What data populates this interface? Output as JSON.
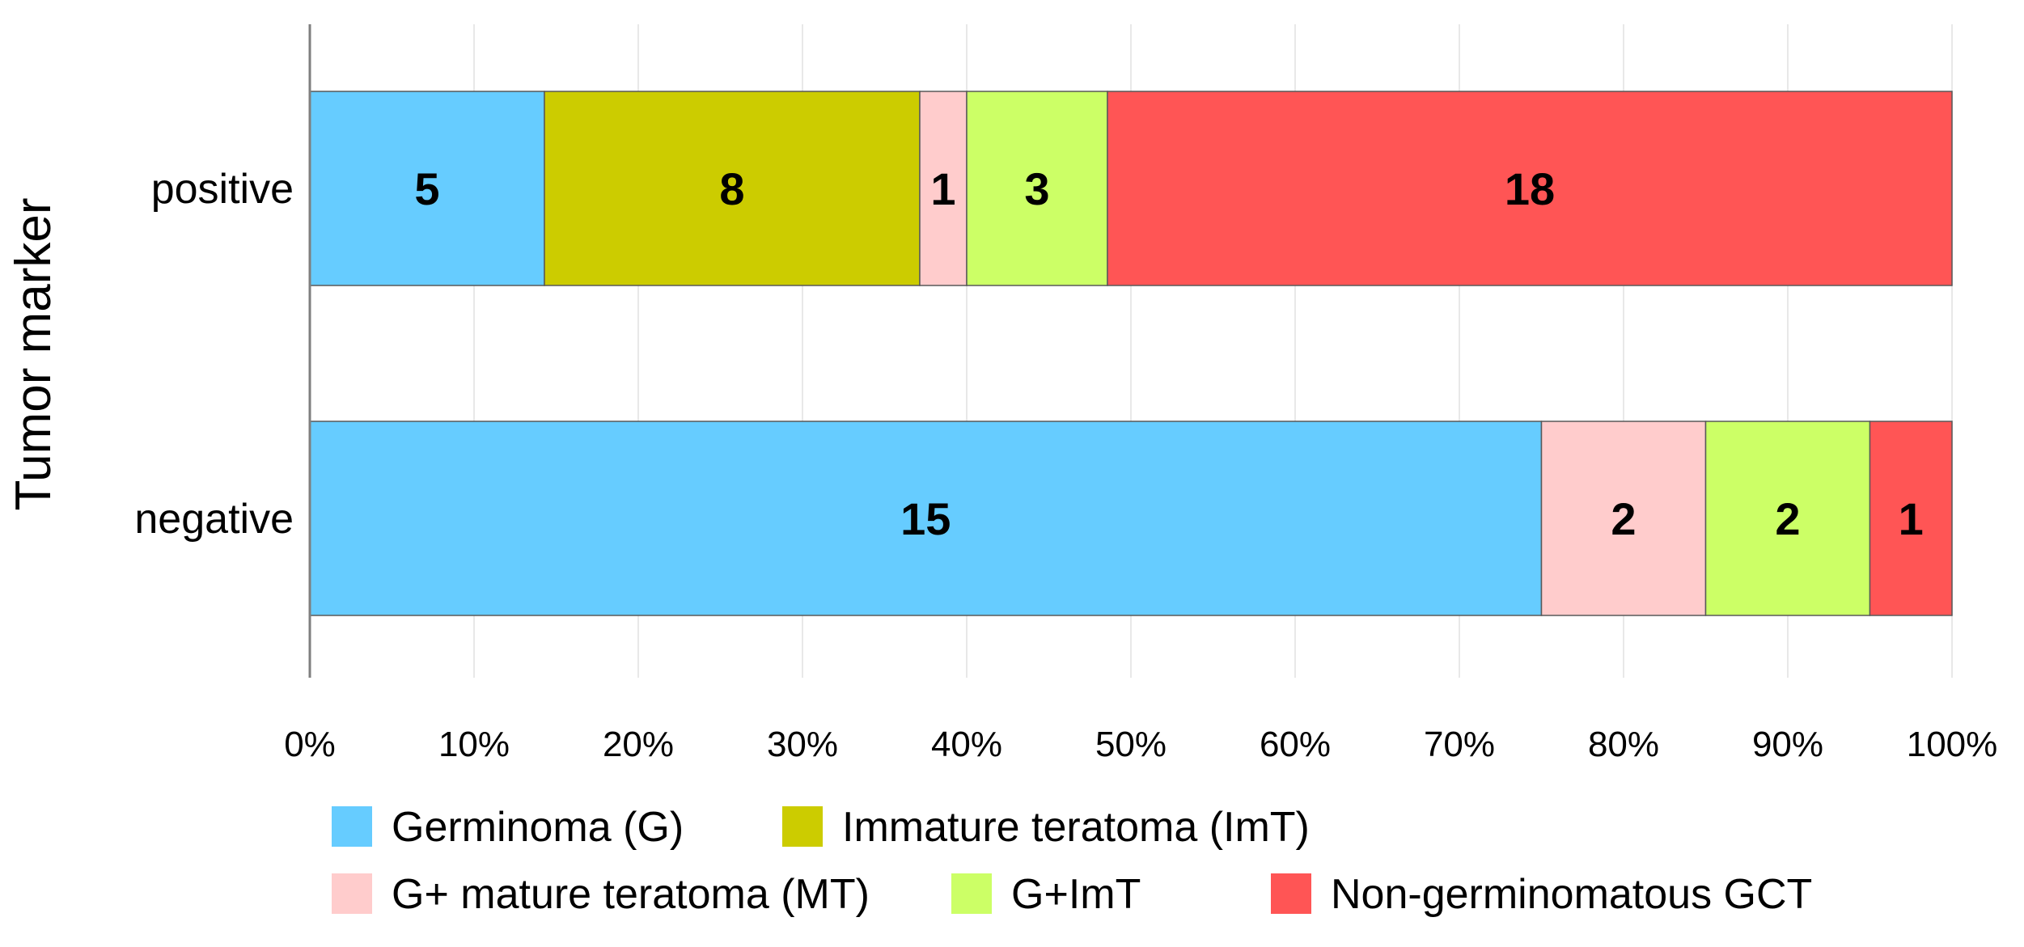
{
  "chart_data": {
    "type": "bar",
    "orientation": "horizontal",
    "stacked": "percent",
    "title": "",
    "xlabel": "",
    "ylabel": "Tumor marker",
    "xlim": [
      0,
      100
    ],
    "x_ticks": [
      "0%",
      "10%",
      "20%",
      "30%",
      "40%",
      "50%",
      "60%",
      "70%",
      "80%",
      "90%",
      "100%"
    ],
    "grid": true,
    "legend_position": "bottom",
    "categories": [
      "positive",
      "negative"
    ],
    "series": [
      {
        "name": "Germinoma (G)",
        "color": "#66ccff",
        "values": [
          5,
          15
        ]
      },
      {
        "name": "Immature teratoma (ImT)",
        "color": "#cccc00",
        "values": [
          8,
          0
        ]
      },
      {
        "name": "G+ mature teratoma (MT)",
        "color": "#ffcccc",
        "values": [
          1,
          2
        ]
      },
      {
        "name": "G+ImT",
        "color": "#ccff66",
        "values": [
          3,
          2
        ]
      },
      {
        "name": "Non-germinomatous GCT",
        "color": "#ff5555",
        "values": [
          18,
          1
        ]
      }
    ]
  }
}
